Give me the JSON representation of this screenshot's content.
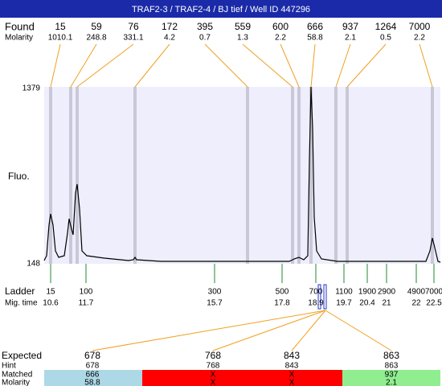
{
  "header": {
    "title": "TRAF2-3 / TRAF2-4 / BJ tief / Well ID 447296"
  },
  "found": {
    "label": "Found",
    "molarity_label": "Molarity",
    "peaks": [
      {
        "size": 15,
        "molarity": 1010.1
      },
      {
        "size": 59,
        "molarity": 248.8
      },
      {
        "size": 76,
        "molarity": 331.1
      },
      {
        "size": 172,
        "molarity": 4.2
      },
      {
        "size": 395,
        "molarity": 0.7
      },
      {
        "size": 559,
        "molarity": 1.3
      },
      {
        "size": 600,
        "molarity": 2.2
      },
      {
        "size": 666,
        "molarity": 58.8
      },
      {
        "size": 937,
        "molarity": 2.1
      },
      {
        "size": 1264,
        "molarity": 0.5
      },
      {
        "size": 7000,
        "molarity": 2.2
      }
    ]
  },
  "plot": {
    "y_label": "Fluo.",
    "y_max": 1379,
    "y_min": 148
  },
  "ladder": {
    "label": "Ladder",
    "time_label": "Mig. time",
    "sizes": [
      15,
      100,
      300,
      500,
      700,
      1100,
      1900,
      2900,
      4900,
      7000
    ],
    "times": [
      10.6,
      11.7,
      15.7,
      17.8,
      18.9,
      19.7,
      20.4,
      21,
      22,
      22.5
    ]
  },
  "expected": {
    "labels": [
      "Expected",
      "Hint",
      "Matched",
      "Molarity"
    ],
    "columns": [
      {
        "expected": 678,
        "hint": 678,
        "matched": 666,
        "molarity": 58.8
      },
      {
        "expected": 768,
        "hint": 768,
        "matched": "X",
        "molarity": "X"
      },
      {
        "expected": 843,
        "hint": 843,
        "matched": "X",
        "molarity": "X"
      },
      {
        "expected": 863,
        "hint": 863,
        "matched": 937,
        "molarity": 2.1
      }
    ]
  }
}
